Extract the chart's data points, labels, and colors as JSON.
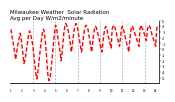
{
  "title": "Milwaukee Weather  Solar Radiation\nAvg per Day W/m2/minute",
  "title_fontsize": 4.0,
  "bg_color": "#ffffff",
  "line_color": "#ff0000",
  "grid_color": "#999999",
  "ylim": [
    -6,
    5
  ],
  "yticks": [
    -5,
    -4,
    -3,
    -2,
    -1,
    0,
    1,
    2,
    3,
    4,
    5
  ],
  "ytick_labels": [
    "-5",
    "-4",
    "-3",
    "-2",
    "-1",
    "0",
    "1",
    "2",
    "3",
    "4",
    "5"
  ],
  "values": [
    3.5,
    2.5,
    1.5,
    0.5,
    -0.5,
    -1.8,
    -0.8,
    0.5,
    1.2,
    2.0,
    2.8,
    2.0,
    0.5,
    -1.0,
    -2.5,
    -2.0,
    -1.0,
    0.2,
    1.5,
    2.5,
    3.2,
    2.8,
    2.0,
    1.2,
    0.0,
    -1.5,
    -3.0,
    -4.5,
    -5.2,
    -4.0,
    -2.5,
    -1.0,
    0.5,
    1.8,
    3.0,
    3.5,
    3.0,
    1.5,
    -0.5,
    -2.8,
    -4.8,
    -5.5,
    -5.0,
    -4.0,
    -2.2,
    -0.5,
    1.5,
    3.0,
    4.2,
    3.8,
    2.8,
    1.5,
    0.5,
    -0.5,
    -2.0,
    -0.8,
    1.0,
    2.8,
    4.0,
    4.5,
    4.2,
    3.8,
    3.0,
    2.0,
    1.0,
    -0.5,
    0.5,
    2.0,
    3.2,
    4.0,
    4.5,
    4.2,
    3.5,
    2.5,
    1.5,
    0.5,
    -0.5,
    0.5,
    2.0,
    3.2,
    4.0,
    4.2,
    4.0,
    3.5,
    2.5,
    1.5,
    0.5,
    -0.5,
    1.0,
    2.5,
    3.5,
    4.0,
    3.8,
    3.2,
    2.5,
    1.8,
    1.0,
    0.2,
    -0.5,
    1.0,
    2.5,
    3.5,
    4.0,
    3.8,
    3.0,
    2.2,
    1.5,
    0.8,
    0.2,
    3.5,
    4.0,
    4.2,
    3.8,
    3.2,
    2.5,
    1.8,
    1.2,
    0.5,
    2.0,
    3.5,
    4.0,
    3.5,
    3.0,
    2.2,
    1.5,
    0.8,
    0.2,
    -0.5,
    1.5,
    3.0,
    4.0,
    4.0,
    3.5,
    3.0,
    2.5,
    2.0,
    1.5,
    1.0,
    0.5,
    3.5,
    4.2,
    3.8,
    3.5,
    3.0,
    2.5,
    2.0,
    1.5,
    3.5,
    4.0,
    4.2,
    3.8,
    3.2,
    2.5,
    2.0,
    1.5,
    1.0,
    0.5,
    3.5,
    4.2
  ],
  "gridline_positions": [
    24,
    48,
    72,
    96,
    120,
    144
  ],
  "n_xticks": 157
}
